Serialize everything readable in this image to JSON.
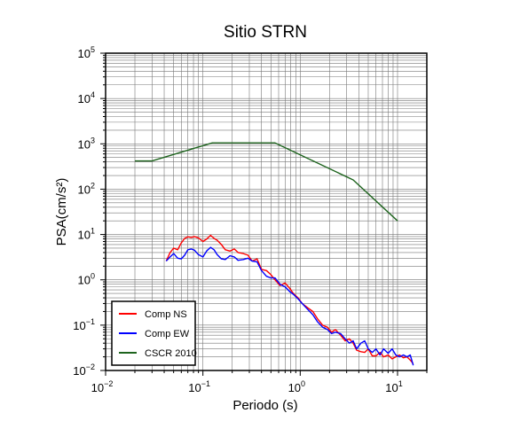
{
  "chart_data": {
    "type": "line",
    "title": "Sitio STRN",
    "xlabel": "Periodo (s)",
    "ylabel": "PSA(cm/s²)",
    "xscale": "log",
    "yscale": "log",
    "xlim": [
      0.01,
      20
    ],
    "ylim": [
      0.01,
      100000
    ],
    "grid": true,
    "legend_placement": "bottom-left",
    "x_ticks": [
      {
        "base": "10",
        "exp": "−2",
        "value": 0.01
      },
      {
        "base": "10",
        "exp": "−1",
        "value": 0.1
      },
      {
        "base": "10",
        "exp": "0",
        "value": 1
      },
      {
        "base": "10",
        "exp": "1",
        "value": 10
      }
    ],
    "y_ticks": [
      {
        "base": "10",
        "exp": "−2",
        "value": 0.01
      },
      {
        "base": "10",
        "exp": "−1",
        "value": 0.1
      },
      {
        "base": "10",
        "exp": "0",
        "value": 1
      },
      {
        "base": "10",
        "exp": "1",
        "value": 10
      },
      {
        "base": "10",
        "exp": "2",
        "value": 100
      },
      {
        "base": "10",
        "exp": "3",
        "value": 1000
      },
      {
        "base": "10",
        "exp": "4",
        "value": 10000
      },
      {
        "base": "10",
        "exp": "5",
        "value": 100000
      }
    ],
    "series": [
      {
        "name": "Comp NS",
        "color": "#ff0000",
        "points": [
          [
            0.042,
            2.6
          ],
          [
            0.046,
            4.0
          ],
          [
            0.05,
            5.0
          ],
          [
            0.055,
            4.6
          ],
          [
            0.06,
            6.5
          ],
          [
            0.065,
            8.2
          ],
          [
            0.07,
            8.9
          ],
          [
            0.076,
            8.6
          ],
          [
            0.082,
            9.0
          ],
          [
            0.09,
            8.4
          ],
          [
            0.1,
            7.0
          ],
          [
            0.11,
            8.0
          ],
          [
            0.12,
            9.6
          ],
          [
            0.13,
            8.2
          ],
          [
            0.14,
            7.5
          ],
          [
            0.155,
            6.0
          ],
          [
            0.17,
            4.6
          ],
          [
            0.19,
            4.3
          ],
          [
            0.21,
            4.8
          ],
          [
            0.23,
            4.0
          ],
          [
            0.26,
            3.8
          ],
          [
            0.29,
            3.5
          ],
          [
            0.32,
            2.6
          ],
          [
            0.36,
            2.9
          ],
          [
            0.4,
            1.7
          ],
          [
            0.45,
            1.6
          ],
          [
            0.5,
            1.3
          ],
          [
            0.55,
            1.0
          ],
          [
            0.62,
            0.75
          ],
          [
            0.7,
            0.85
          ],
          [
            0.78,
            0.65
          ],
          [
            0.85,
            0.5
          ],
          [
            0.95,
            0.4
          ],
          [
            1.05,
            0.3
          ],
          [
            1.2,
            0.24
          ],
          [
            1.35,
            0.2
          ],
          [
            1.5,
            0.14
          ],
          [
            1.7,
            0.1
          ],
          [
            1.9,
            0.09
          ],
          [
            2.1,
            0.07
          ],
          [
            2.3,
            0.08
          ],
          [
            2.6,
            0.06
          ],
          [
            2.9,
            0.045
          ],
          [
            3.2,
            0.05
          ],
          [
            3.5,
            0.04
          ],
          [
            3.8,
            0.028
          ],
          [
            4.2,
            0.026
          ],
          [
            4.6,
            0.025
          ],
          [
            5.0,
            0.03
          ],
          [
            5.5,
            0.021
          ],
          [
            6.0,
            0.021
          ],
          [
            6.6,
            0.025
          ],
          [
            7.2,
            0.02
          ],
          [
            8.0,
            0.022
          ],
          [
            8.8,
            0.018
          ],
          [
            9.6,
            0.02
          ],
          [
            10.5,
            0.022
          ],
          [
            11.5,
            0.019
          ],
          [
            12.5,
            0.02
          ],
          [
            13.5,
            0.017
          ],
          [
            14.5,
            0.014
          ]
        ]
      },
      {
        "name": "Comp EW",
        "color": "#0000ff",
        "points": [
          [
            0.042,
            2.6
          ],
          [
            0.046,
            3.2
          ],
          [
            0.05,
            3.8
          ],
          [
            0.055,
            3.0
          ],
          [
            0.06,
            2.9
          ],
          [
            0.065,
            3.5
          ],
          [
            0.07,
            4.6
          ],
          [
            0.076,
            4.8
          ],
          [
            0.082,
            4.5
          ],
          [
            0.09,
            3.6
          ],
          [
            0.1,
            3.2
          ],
          [
            0.11,
            4.4
          ],
          [
            0.12,
            5.2
          ],
          [
            0.13,
            4.6
          ],
          [
            0.14,
            3.6
          ],
          [
            0.155,
            2.9
          ],
          [
            0.17,
            2.8
          ],
          [
            0.19,
            3.4
          ],
          [
            0.21,
            3.2
          ],
          [
            0.23,
            2.7
          ],
          [
            0.26,
            2.8
          ],
          [
            0.29,
            3.0
          ],
          [
            0.32,
            2.6
          ],
          [
            0.36,
            2.5
          ],
          [
            0.4,
            1.6
          ],
          [
            0.45,
            1.2
          ],
          [
            0.5,
            1.1
          ],
          [
            0.55,
            1.1
          ],
          [
            0.62,
            0.8
          ],
          [
            0.7,
            0.7
          ],
          [
            0.78,
            0.55
          ],
          [
            0.85,
            0.48
          ],
          [
            0.95,
            0.38
          ],
          [
            1.05,
            0.3
          ],
          [
            1.2,
            0.22
          ],
          [
            1.35,
            0.17
          ],
          [
            1.5,
            0.12
          ],
          [
            1.7,
            0.09
          ],
          [
            1.9,
            0.08
          ],
          [
            2.1,
            0.065
          ],
          [
            2.3,
            0.07
          ],
          [
            2.6,
            0.065
          ],
          [
            2.9,
            0.05
          ],
          [
            3.2,
            0.04
          ],
          [
            3.5,
            0.045
          ],
          [
            3.8,
            0.03
          ],
          [
            4.2,
            0.04
          ],
          [
            4.6,
            0.045
          ],
          [
            5.0,
            0.03
          ],
          [
            5.5,
            0.025
          ],
          [
            6.0,
            0.03
          ],
          [
            6.6,
            0.022
          ],
          [
            7.2,
            0.03
          ],
          [
            8.0,
            0.024
          ],
          [
            8.8,
            0.03
          ],
          [
            9.6,
            0.022
          ],
          [
            10.5,
            0.02
          ],
          [
            11.5,
            0.022
          ],
          [
            12.5,
            0.02
          ],
          [
            13.5,
            0.022
          ],
          [
            14.5,
            0.013
          ]
        ]
      },
      {
        "name": "CSCR 2010",
        "color": "#1e641e",
        "points": [
          [
            0.02,
            420
          ],
          [
            0.03,
            420
          ],
          [
            0.125,
            1050
          ],
          [
            0.55,
            1050
          ],
          [
            3.5,
            160
          ],
          [
            10,
            20
          ]
        ]
      }
    ]
  }
}
